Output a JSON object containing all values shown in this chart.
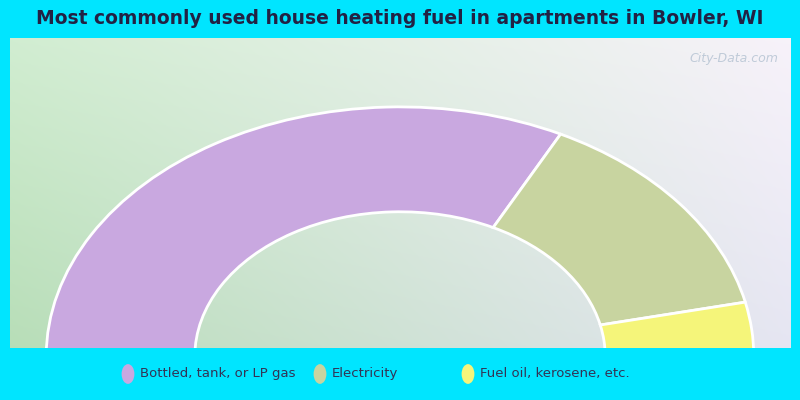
{
  "title": "Most commonly used house heating fuel in apartments in Bowler, WI",
  "segments": [
    {
      "label": "Bottled, tank, or LP gas",
      "value": 65.0,
      "color": "#c9a8e0"
    },
    {
      "label": "Electricity",
      "value": 28.0,
      "color": "#c8d4a0"
    },
    {
      "label": "Fuel oil, kerosene, etc.",
      "value": 7.0,
      "color": "#f5f57a"
    }
  ],
  "cyan_color": "#00e5ff",
  "title_color": "#222244",
  "title_fontsize": 13.5,
  "outer_r": 1.0,
  "inner_r": 0.58,
  "bg_colors": [
    "#b8ddb8",
    "#c8d8e8",
    "#f0f0f8",
    "#e8e8f4"
  ],
  "legend_text_color": "#333355",
  "legend_fontsize": 9.5,
  "watermark": "City-Data.com"
}
